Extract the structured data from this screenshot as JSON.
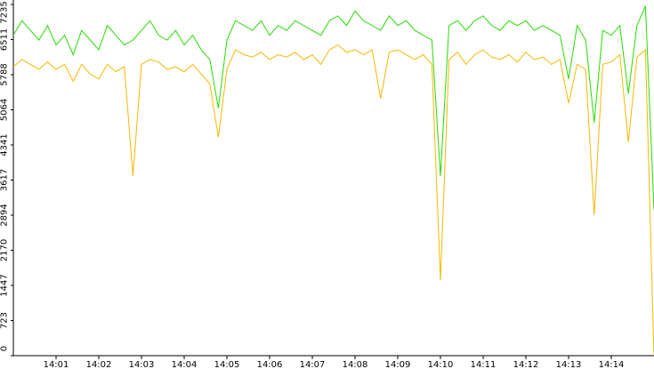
{
  "chart_data": {
    "type": "line",
    "x": [
      840,
      840.2,
      840.4,
      840.6,
      840.8,
      841,
      841.2,
      841.4,
      841.6,
      841.8,
      842,
      842.2,
      842.4,
      842.6,
      842.8,
      843,
      843.2,
      843.4,
      843.6,
      843.8,
      844,
      844.2,
      844.4,
      844.6,
      844.8,
      845,
      845.2,
      845.4,
      845.6,
      845.8,
      846,
      846.2,
      846.4,
      846.6,
      846.8,
      847,
      847.2,
      847.4,
      847.6,
      847.8,
      848,
      848.2,
      848.4,
      848.6,
      848.8,
      849,
      849.2,
      849.4,
      849.6,
      849.8,
      850,
      850.2,
      850.4,
      850.6,
      850.8,
      851,
      851.2,
      851.4,
      851.6,
      851.8,
      852,
      852.2,
      852.4,
      852.6,
      852.8,
      853,
      853.2,
      853.4,
      853.6,
      853.8,
      854,
      854.2,
      854.4,
      854.6,
      854.8,
      855
    ],
    "series": [
      {
        "color": "#22dd00",
        "values": [
          6600,
          6900,
          6700,
          6500,
          6800,
          6400,
          6600,
          6200,
          6700,
          6500,
          6300,
          6800,
          6600,
          6400,
          6500,
          6700,
          6900,
          6600,
          6500,
          6700,
          6400,
          6600,
          6300,
          6100,
          5100,
          6500,
          6900,
          6800,
          6700,
          6900,
          6600,
          6800,
          6700,
          6900,
          6800,
          6700,
          6600,
          6900,
          7000,
          6800,
          7100,
          6900,
          6800,
          6700,
          7000,
          6800,
          6900,
          6700,
          6600,
          6500,
          3700,
          6800,
          6900,
          6700,
          6900,
          7000,
          6800,
          6700,
          6900,
          6800,
          6900,
          6700,
          6800,
          6700,
          6600,
          5700,
          6800,
          6500,
          4800,
          6700,
          6600,
          6800,
          5400,
          6800,
          7200,
          3000
        ]
      },
      {
        "color": "#f5b800",
        "values": [
          5950,
          6100,
          6000,
          5900,
          6050,
          5900,
          6000,
          5650,
          6000,
          5800,
          5700,
          6000,
          5850,
          5950,
          3700,
          6000,
          6100,
          6050,
          5900,
          5950,
          5850,
          6000,
          5800,
          5600,
          4500,
          5900,
          6300,
          6200,
          6150,
          6250,
          6100,
          6200,
          6150,
          6250,
          6100,
          6200,
          6000,
          6300,
          6400,
          6250,
          6300,
          6200,
          6300,
          5300,
          6250,
          6300,
          6200,
          6100,
          6200,
          6000,
          1550,
          6100,
          6250,
          6000,
          6200,
          6300,
          6150,
          6100,
          6200,
          6050,
          6250,
          6100,
          6150,
          6000,
          6100,
          5200,
          6000,
          5900,
          2900,
          6000,
          6050,
          6200,
          4400,
          6150,
          6300,
          0
        ]
      }
    ],
    "xlim": [
      840,
      855
    ],
    "xticks": [
      {
        "value": 841,
        "label": "14:01"
      },
      {
        "value": 842,
        "label": "14:02"
      },
      {
        "value": 843,
        "label": "14:03"
      },
      {
        "value": 844,
        "label": "14:04"
      },
      {
        "value": 845,
        "label": "14:05"
      },
      {
        "value": 846,
        "label": "14:06"
      },
      {
        "value": 847,
        "label": "14:07"
      },
      {
        "value": 848,
        "label": "14:08"
      },
      {
        "value": 849,
        "label": "14:09"
      },
      {
        "value": 850,
        "label": "14:10"
      },
      {
        "value": 851,
        "label": "14:11"
      },
      {
        "value": 852,
        "label": "14:12"
      },
      {
        "value": 853,
        "label": "14:13"
      },
      {
        "value": 854,
        "label": "14:14"
      }
    ],
    "ylim": [
      0,
      7235
    ],
    "yticks": [
      0,
      723,
      1447,
      2170,
      2894,
      3617,
      4341,
      5064,
      5788,
      6511,
      7235
    ]
  }
}
